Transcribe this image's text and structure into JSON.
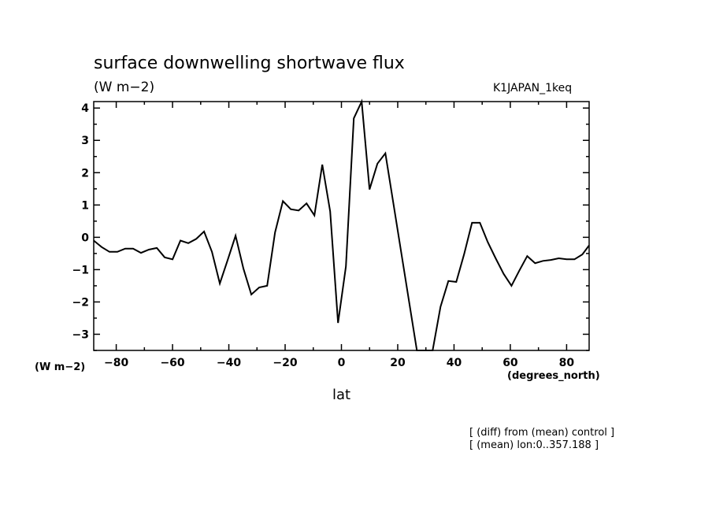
{
  "chart_data": {
    "type": "line",
    "title": "surface downwelling shortwave flux",
    "units_label": "(W m−2)",
    "run_label": "K1JAPAN_1keq",
    "ylabel": "(W m−2)",
    "xlabel": "lat",
    "x_units": "(degrees_north)",
    "xlim": [
      -88,
      88
    ],
    "ylim": [
      -3.5,
      4.2
    ],
    "x_ticks": [
      -80,
      -60,
      -40,
      -20,
      0,
      20,
      40,
      60,
      80
    ],
    "x_tick_labels": [
      "−80",
      "−60",
      "−40",
      "−20",
      "0",
      "20",
      "40",
      "60",
      "80"
    ],
    "y_ticks": [
      -3,
      -2,
      -1,
      0,
      1,
      2,
      3,
      4
    ],
    "y_tick_labels": [
      "−3",
      "−2",
      "−1",
      "0",
      "1",
      "2",
      "3",
      "4"
    ],
    "grid": false,
    "series": [
      {
        "x": [
          -88,
          -85.2,
          -82.4,
          -79.6,
          -76.8,
          -74.0,
          -71.2,
          -68.4,
          -65.6,
          -62.8,
          -60.0,
          -57.2,
          -54.4,
          -51.6,
          -48.8,
          -46.0,
          -43.2,
          -40.4,
          -37.6,
          -34.8,
          -32.0,
          -29.2,
          -26.4,
          -23.6,
          -20.8,
          -18.0,
          -15.2,
          -12.4,
          -9.6,
          -6.8,
          -4.0,
          -1.2,
          1.6,
          4.4,
          7.2,
          10.0,
          12.8,
          15.6,
          26.8,
          29.6,
          32.4,
          35.2,
          38.0,
          40.8,
          43.6,
          46.4,
          49.2,
          52.0,
          54.8,
          57.6,
          60.4,
          63.2,
          66.0,
          68.8,
          71.6,
          74.4,
          77.2,
          80.0,
          82.8,
          85.6,
          88
        ],
        "values": [
          -0.1,
          -0.3,
          -0.45,
          -0.45,
          -0.35,
          -0.35,
          -0.48,
          -0.38,
          -0.33,
          -0.62,
          -0.68,
          -0.1,
          -0.18,
          -0.05,
          0.18,
          -0.45,
          -1.43,
          -0.7,
          0.05,
          -0.97,
          -1.77,
          -1.55,
          -1.5,
          0.15,
          1.12,
          0.87,
          0.83,
          1.05,
          0.68,
          2.25,
          0.8,
          -2.65,
          -0.9,
          3.68,
          4.2,
          1.48,
          2.28,
          2.6,
          -3.5,
          -3.5,
          -3.5,
          -2.15,
          -1.35,
          -1.38,
          -0.52,
          0.45,
          0.45,
          -0.15,
          -0.65,
          -1.13,
          -1.5,
          -1.03,
          -0.58,
          -0.8,
          -0.73,
          -0.7,
          -0.65,
          -0.68,
          -0.68,
          -0.53,
          -0.25
        ]
      }
    ],
    "notes": [
      "[ (diff) from (mean) control ]",
      "[ (mean) lon:0..357.188 ]"
    ]
  }
}
